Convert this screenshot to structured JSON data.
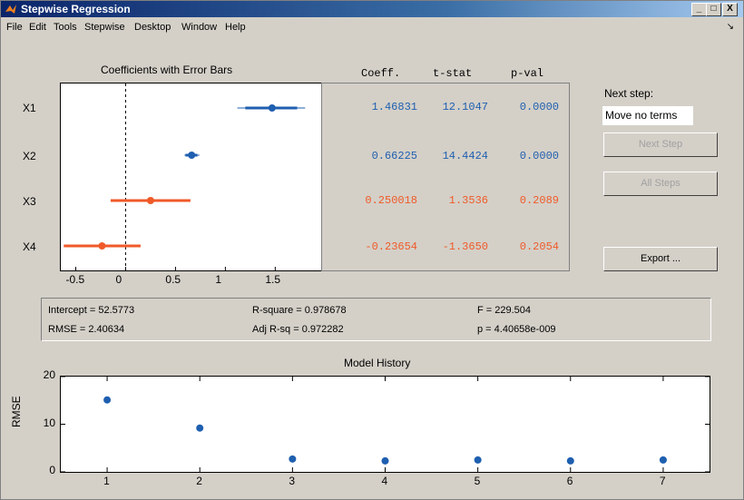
{
  "window": {
    "title": "Stepwise Regression",
    "min": "_",
    "max": "□",
    "close": "X"
  },
  "menu": [
    "File",
    "Edit",
    "Tools",
    "Stepwise",
    "Desktop",
    "Window",
    "Help"
  ],
  "menu_arrow": "↘",
  "coef_plot": {
    "title": "Coefficients with Error Bars",
    "terms": [
      "X1",
      "X2",
      "X3",
      "X4"
    ],
    "xticks": [
      "-0.5",
      "0",
      "0.5",
      "1",
      "1.5"
    ],
    "xtick_values": [
      -0.5,
      0,
      0.5,
      1,
      1.5
    ],
    "xlim": [
      -0.65,
      1.97
    ],
    "estimates": [
      1.46831,
      0.66225,
      0.250018,
      -0.23654
    ],
    "ci_low": [
      1.2,
      0.6,
      -0.15,
      -0.62
    ],
    "ci_high": [
      1.72,
      0.72,
      0.65,
      0.15
    ],
    "in_ci_low": [
      1.12,
      0.59,
      -0.08,
      -0.58
    ],
    "in_ci_high": [
      1.8,
      0.74,
      0.58,
      0.1
    ],
    "in_model_color": "#1f5fb0",
    "out_model_color": "#f05a28"
  },
  "coef_table": {
    "headers": [
      "Coeff.",
      "t-stat",
      "p-val"
    ],
    "rows": [
      {
        "coeff": "1.46831",
        "tstat": "12.1047",
        "pval": "0.0000",
        "in_model": true
      },
      {
        "coeff": "0.66225",
        "tstat": "14.4424",
        "pval": "0.0000",
        "in_model": true
      },
      {
        "coeff": "0.250018",
        "tstat": "1.3536",
        "pval": "0.2089",
        "in_model": false
      },
      {
        "coeff": "-0.23654",
        "tstat": "-1.3650",
        "pval": "0.2054",
        "in_model": false
      }
    ]
  },
  "next_step": {
    "label": "Next step:",
    "value": "Move no terms"
  },
  "buttons": {
    "next_step": "Next Step",
    "all_steps": "All Steps",
    "export": "Export ..."
  },
  "stats": {
    "intercept": "Intercept = 52.5773",
    "rmse": "RMSE = 2.40634",
    "rsquare": "R-square = 0.978678",
    "adj_rsq": "Adj R-sq = 0.972282",
    "f": "F = 229.504",
    "p": "p = 4.40658e-009"
  },
  "chart_data": {
    "type": "scatter",
    "title": "Model History",
    "ylabel": "RMSE",
    "xlabel": "",
    "x": [
      1,
      2,
      3,
      4,
      5,
      6,
      7
    ],
    "y": [
      15.1,
      9.2,
      2.7,
      2.3,
      2.5,
      2.3,
      2.5
    ],
    "xlim": [
      0.5,
      7.5
    ],
    "ylim": [
      0,
      20
    ],
    "yticks": [
      0,
      10,
      20
    ],
    "xticks": [
      1,
      2,
      3,
      4,
      5,
      6,
      7
    ],
    "marker_color": "#1f5fb0"
  }
}
